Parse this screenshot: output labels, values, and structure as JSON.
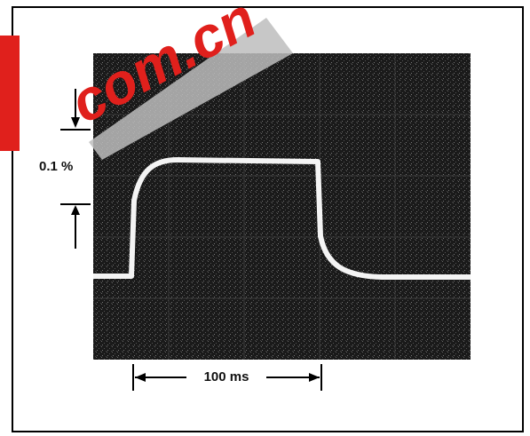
{
  "figure": {
    "amplitude_label": "0.1 %",
    "time_label": "100 ms",
    "watermark": "com.cn"
  }
}
